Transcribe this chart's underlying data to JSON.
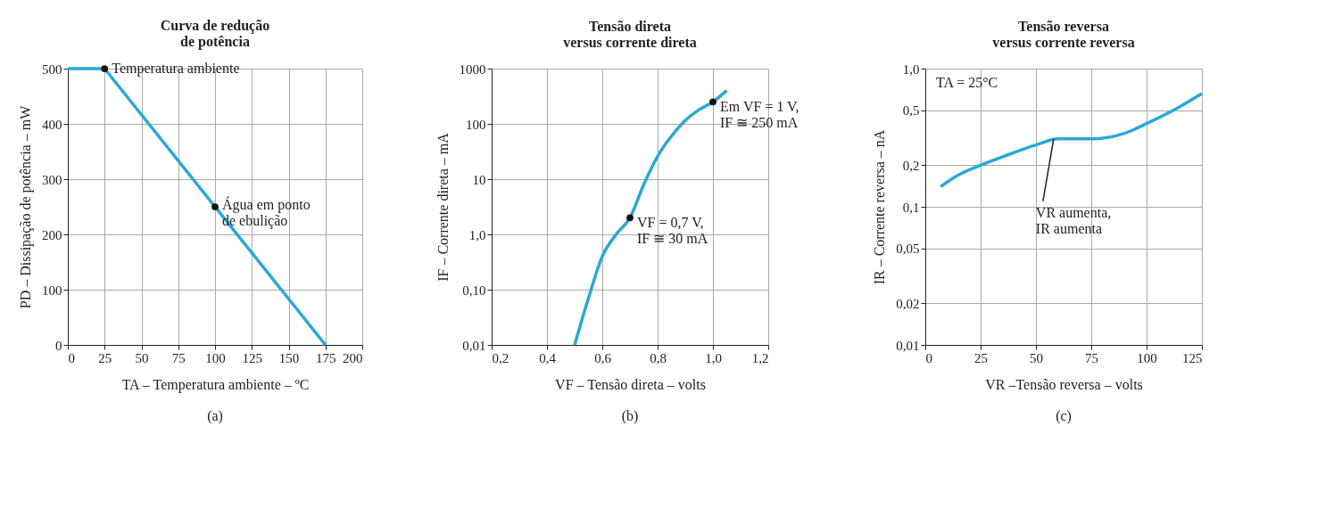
{
  "chart_data": [
    {
      "type": "line",
      "title": "Curva de redução\nde potência",
      "xlabel": "TA – Temperatura ambiente – ºC",
      "ylabel": "PD – Dissipação de potência – mW",
      "xlim": [
        0,
        200
      ],
      "xticks": [
        0,
        25,
        50,
        75,
        100,
        125,
        150,
        175,
        200
      ],
      "ylim": [
        0,
        500
      ],
      "yticks": [
        0,
        100,
        200,
        300,
        400,
        500
      ],
      "grid": true,
      "series": [
        {
          "color": "#29a8d6",
          "x": [
            0,
            25,
            175
          ],
          "values": [
            500,
            500,
            0
          ]
        },
        {
          "type": "scatter",
          "color": "#111111",
          "x": [
            25,
            100
          ],
          "values": [
            500,
            250
          ]
        }
      ],
      "annotations": [
        {
          "text": "Temperatura ambiente",
          "x": 25,
          "y": 500
        },
        {
          "text": "Água em ponto\nde ebulição",
          "x": 100,
          "y": 250
        },
        "(a)"
      ]
    },
    {
      "type": "line",
      "title": "Tensão direta\nversus corrente direta",
      "xlabel": "VF – Tensão direta – volts",
      "ylabel": "IF – Corrente direta – mA",
      "xlim": [
        0.2,
        1.2
      ],
      "xticks": [
        {
          "value": 0.2,
          "label": "0,2"
        },
        {
          "value": 0.4,
          "label": "0,4"
        },
        {
          "value": 0.6,
          "label": "0,6"
        },
        {
          "value": 0.8,
          "label": "0,8"
        },
        {
          "value": 1.0,
          "label": "1,0"
        },
        {
          "value": 1.2,
          "label": "1,2"
        }
      ],
      "ylim": [
        0.01,
        1000
      ],
      "yticks": [
        {
          "value": 0.01,
          "label": "0,01"
        },
        {
          "value": 0.1,
          "label": "0,10"
        },
        {
          "value": 1,
          "label": "1,0"
        },
        10,
        100,
        1000
      ],
      "log": "y",
      "grid": true,
      "series": [
        {
          "color": "#29a8d6",
          "x": [
            0.5,
            0.55,
            0.6,
            0.65,
            0.7,
            0.75,
            0.8,
            0.85,
            0.9,
            0.95,
            1.0,
            1.05
          ],
          "values": [
            0.01,
            0.07,
            0.4,
            1.0,
            2,
            8,
            26,
            60,
            115,
            180,
            250,
            400
          ]
        },
        {
          "type": "scatter",
          "color": "#111111",
          "x": [
            0.7,
            1.0
          ],
          "values": [
            2,
            250
          ]
        }
      ],
      "annotations": [
        {
          "text": "Em VF = 1 V,\nIF ≅ 250 mA",
          "x": 1.0,
          "y": 250
        },
        {
          "text": "VF = 0,7 V,\nIF ≅ 30 mA",
          "x": 0.7,
          "y": 2
        },
        "(b)"
      ]
    },
    {
      "type": "line",
      "title": "Tensão reversa\nversus corrente reversa",
      "xlabel": "VR –Tensão reversa – volts",
      "ylabel": "IR – Corrente reversa – nA",
      "xlim": [
        0,
        125
      ],
      "xticks": [
        0,
        25,
        50,
        75,
        100,
        125
      ],
      "ylim": [
        0.01,
        1.0
      ],
      "yticks": [
        {
          "value": 0.01,
          "label": "0,01"
        },
        {
          "value": 0.02,
          "label": "0,02"
        },
        {
          "value": 0.05,
          "label": "0,05"
        },
        {
          "value": 0.1,
          "label": "0,1"
        },
        {
          "value": 0.2,
          "label": "0,2"
        },
        {
          "value": 0.5,
          "label": "0,5"
        },
        {
          "value": 1.0,
          "label": "1,0"
        }
      ],
      "log": "y",
      "grid": true,
      "series": [
        {
          "color": "#29a8d6",
          "x": [
            7,
            15,
            25,
            35,
            50,
            60,
            75,
            90,
            100,
            115,
            125
          ],
          "values": [
            0.14,
            0.17,
            0.2,
            0.23,
            0.28,
            0.31,
            0.31,
            0.34,
            0.4,
            0.53,
            0.66
          ]
        }
      ],
      "annotations": [
        {
          "text": "VR aumenta,\nIR aumenta",
          "x": 58,
          "y": 0.31
        },
        "TA = 25°C",
        "(c)"
      ]
    }
  ]
}
